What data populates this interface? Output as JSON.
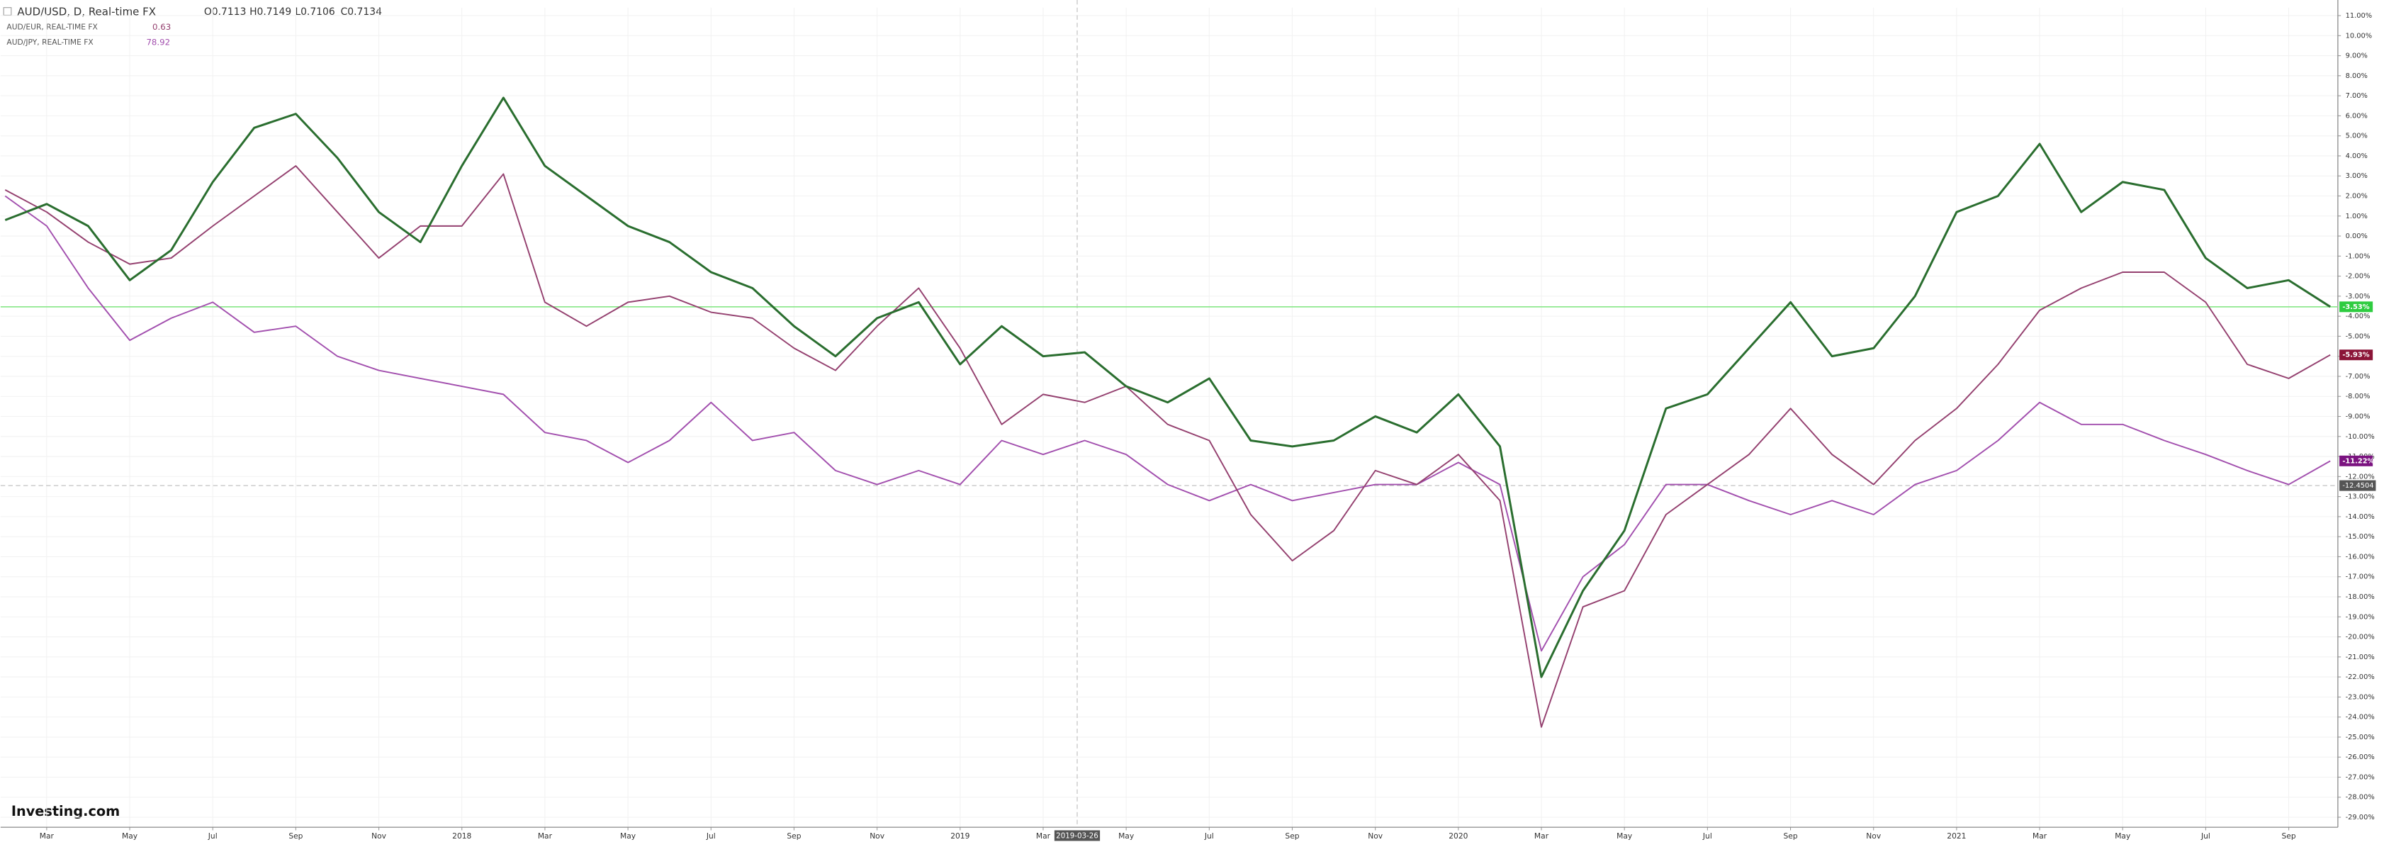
{
  "header": {
    "symbol": "AUD/USD, D, Real-time FX",
    "ohlc": [
      "O0.7113",
      "H0.7149",
      "L0.7106",
      "C0.7134"
    ],
    "compare": [
      {
        "name": "AUD/EUR, REAL-TIME FX",
        "price": "0.63"
      },
      {
        "name": "AUD/JPY, REAL-TIME FX",
        "price": "78.92"
      }
    ]
  },
  "logo": "Investing.com",
  "chart_data": {
    "type": "line",
    "x": [
      "2017-02",
      "2017-03",
      "2017-04",
      "2017-05",
      "2017-06",
      "2017-07",
      "2017-08",
      "2017-09",
      "2017-10",
      "2017-11",
      "2017-12",
      "2018-01",
      "2018-02",
      "2018-03",
      "2018-04",
      "2018-05",
      "2018-06",
      "2018-07",
      "2018-08",
      "2018-09",
      "2018-10",
      "2018-11",
      "2018-12",
      "2019-01",
      "2019-02",
      "2019-03",
      "2019-04",
      "2019-05",
      "2019-06",
      "2019-07",
      "2019-08",
      "2019-09",
      "2019-10",
      "2019-11",
      "2019-12",
      "2020-01",
      "2020-02",
      "2020-03",
      "2020-04",
      "2020-05",
      "2020-06",
      "2020-07",
      "2020-08",
      "2020-09",
      "2020-10",
      "2020-11",
      "2020-12",
      "2021-01",
      "2021-02",
      "2021-03",
      "2021-04",
      "2021-05",
      "2021-06",
      "2021-07",
      "2021-08",
      "2021-09",
      "2021-10"
    ],
    "xlim": [
      "2017-02",
      "2021-10"
    ],
    "xticks": [
      {
        "value": "2017-03",
        "label": "Mar"
      },
      {
        "value": "2017-05",
        "label": "May"
      },
      {
        "value": "2017-07",
        "label": "Jul"
      },
      {
        "value": "2017-09",
        "label": "Sep"
      },
      {
        "value": "2017-11",
        "label": "Nov"
      },
      {
        "value": "2018-01",
        "label": "2018"
      },
      {
        "value": "2018-03",
        "label": "Mar"
      },
      {
        "value": "2018-05",
        "label": "May"
      },
      {
        "value": "2018-07",
        "label": "Jul"
      },
      {
        "value": "2018-09",
        "label": "Sep"
      },
      {
        "value": "2018-11",
        "label": "Nov"
      },
      {
        "value": "2019-01",
        "label": "2019"
      },
      {
        "value": "2019-03",
        "label": "Mar"
      },
      {
        "value": "2019-05",
        "label": "May"
      },
      {
        "value": "2019-07",
        "label": "Jul"
      },
      {
        "value": "2019-09",
        "label": "Sep"
      },
      {
        "value": "2019-11",
        "label": "Nov"
      },
      {
        "value": "2020-01",
        "label": "2020"
      },
      {
        "value": "2020-03",
        "label": "Mar"
      },
      {
        "value": "2020-05",
        "label": "May"
      },
      {
        "value": "2020-07",
        "label": "Jul"
      },
      {
        "value": "2020-09",
        "label": "Sep"
      },
      {
        "value": "2020-11",
        "label": "Nov"
      },
      {
        "value": "2021-01",
        "label": "2021"
      },
      {
        "value": "2021-03",
        "label": "Mar"
      },
      {
        "value": "2021-05",
        "label": "May"
      },
      {
        "value": "2021-07",
        "label": "Jul"
      },
      {
        "value": "2021-09",
        "label": "Sep"
      }
    ],
    "ylim": [
      -29.5,
      11.4
    ],
    "yticks": [
      {
        "value": 11,
        "label": "11.00%"
      },
      {
        "value": 10,
        "label": "10.00%"
      },
      {
        "value": 9,
        "label": "9.00%"
      },
      {
        "value": 8,
        "label": "8.00%"
      },
      {
        "value": 7,
        "label": "7.00%"
      },
      {
        "value": 6,
        "label": "6.00%"
      },
      {
        "value": 5,
        "label": "5.00%"
      },
      {
        "value": 4,
        "label": "4.00%"
      },
      {
        "value": 3,
        "label": "3.00%"
      },
      {
        "value": 2,
        "label": "2.00%"
      },
      {
        "value": 1,
        "label": "1.00%"
      },
      {
        "value": 0,
        "label": "0.00%"
      },
      {
        "value": -1,
        "label": "-1.00%"
      },
      {
        "value": -2,
        "label": "-2.00%"
      },
      {
        "value": -3,
        "label": "-3.00%"
      },
      {
        "value": -4,
        "label": "-4.00%"
      },
      {
        "value": -5,
        "label": "-5.00%"
      },
      {
        "value": -6,
        "label": "-6.00%"
      },
      {
        "value": -7,
        "label": "-7.00%"
      },
      {
        "value": -8,
        "label": "-8.00%"
      },
      {
        "value": -9,
        "label": "-9.00%"
      },
      {
        "value": -10,
        "label": "-10.00%"
      },
      {
        "value": -11,
        "label": "-11.00%"
      },
      {
        "value": -12,
        "label": "-12.00%"
      },
      {
        "value": -13,
        "label": "-13.00%"
      },
      {
        "value": -14,
        "label": "-14.00%"
      },
      {
        "value": -15,
        "label": "-15.00%"
      },
      {
        "value": -16,
        "label": "-16.00%"
      },
      {
        "value": -17,
        "label": "-17.00%"
      },
      {
        "value": -18,
        "label": "-18.00%"
      },
      {
        "value": -19,
        "label": "-19.00%"
      },
      {
        "value": -20,
        "label": "-20.00%"
      },
      {
        "value": -21,
        "label": "-21.00%"
      },
      {
        "value": -22,
        "label": "-22.00%"
      },
      {
        "value": -23,
        "label": "-23.00%"
      },
      {
        "value": -24,
        "label": "-24.00%"
      },
      {
        "value": -25,
        "label": "-25.00%"
      },
      {
        "value": -26,
        "label": "-26.00%"
      },
      {
        "value": -27,
        "label": "-27.00%"
      },
      {
        "value": -28,
        "label": "-28.00%"
      },
      {
        "value": -29,
        "label": "-29.00%"
      }
    ],
    "grid": true,
    "series": [
      {
        "name": "AUD/USD",
        "color": "#2a6e2f",
        "badge": "-3.53%",
        "badge_color": "#2ecc40",
        "price_line": true,
        "values": [
          0.8,
          1.6,
          0.5,
          -2.2,
          -0.7,
          2.7,
          5.4,
          6.1,
          3.9,
          1.2,
          -0.3,
          3.5,
          6.9,
          3.5,
          2.0,
          0.5,
          -0.3,
          -1.8,
          -2.6,
          -4.5,
          -6.0,
          -4.1,
          -3.3,
          -6.4,
          -4.5,
          -6.0,
          -5.8,
          -7.5,
          -8.3,
          -7.1,
          -10.2,
          -10.5,
          -10.2,
          -9.0,
          -9.8,
          -7.9,
          -10.5,
          -22.0,
          -17.7,
          -14.7,
          -8.6,
          -7.9,
          -5.6,
          -3.3,
          -6.0,
          -5.6,
          -3.0,
          1.2,
          2.0,
          4.6,
          1.2,
          2.7,
          2.3,
          -1.1,
          -2.6,
          -2.2,
          -3.53
        ]
      },
      {
        "name": "AUD/EUR",
        "color": "#94406f",
        "badge": "-5.93%",
        "badge_color": "#8b1538",
        "values": [
          2.3,
          1.2,
          -0.3,
          -1.4,
          -1.1,
          0.5,
          2.0,
          3.5,
          1.2,
          -1.1,
          0.5,
          0.5,
          3.1,
          -3.3,
          -4.5,
          -3.3,
          -3.0,
          -3.8,
          -4.1,
          -5.6,
          -6.7,
          -4.5,
          -2.6,
          -5.6,
          -9.4,
          -7.9,
          -8.3,
          -7.5,
          -9.4,
          -10.2,
          -13.9,
          -16.2,
          -14.7,
          -11.7,
          -12.4,
          -10.9,
          -13.2,
          -24.5,
          -18.5,
          -17.7,
          -13.9,
          -12.4,
          -10.9,
          -8.6,
          -10.9,
          -12.4,
          -10.2,
          -8.6,
          -6.4,
          -3.7,
          -2.6,
          -1.8,
          -1.8,
          -3.3,
          -6.4,
          -7.1,
          -5.93
        ]
      },
      {
        "name": "AUD/JPY",
        "color": "#a24fae",
        "badge": "-11.22%",
        "badge_color": "#7b1380",
        "values": [
          2.0,
          0.5,
          -2.6,
          -5.2,
          -4.1,
          -3.3,
          -4.8,
          -4.5,
          -6.0,
          -6.7,
          -7.1,
          -7.5,
          -7.9,
          -9.8,
          -10.2,
          -11.3,
          -10.2,
          -8.3,
          -10.2,
          -9.8,
          -11.7,
          -12.4,
          -11.7,
          -12.4,
          -10.2,
          -10.9,
          -10.2,
          -10.9,
          -12.4,
          -13.2,
          -12.4,
          -13.2,
          -12.8,
          -12.4,
          -12.4,
          -11.3,
          -12.4,
          -20.7,
          -17.0,
          -15.4,
          -12.4,
          -12.4,
          -13.2,
          -13.9,
          -13.2,
          -13.9,
          -12.4,
          -11.7,
          -10.2,
          -8.3,
          -9.4,
          -9.4,
          -10.2,
          -10.9,
          -11.7,
          -12.4,
          -11.22
        ]
      }
    ],
    "crosshair": {
      "x": "2019-03-26",
      "y": -12.4504
    }
  }
}
